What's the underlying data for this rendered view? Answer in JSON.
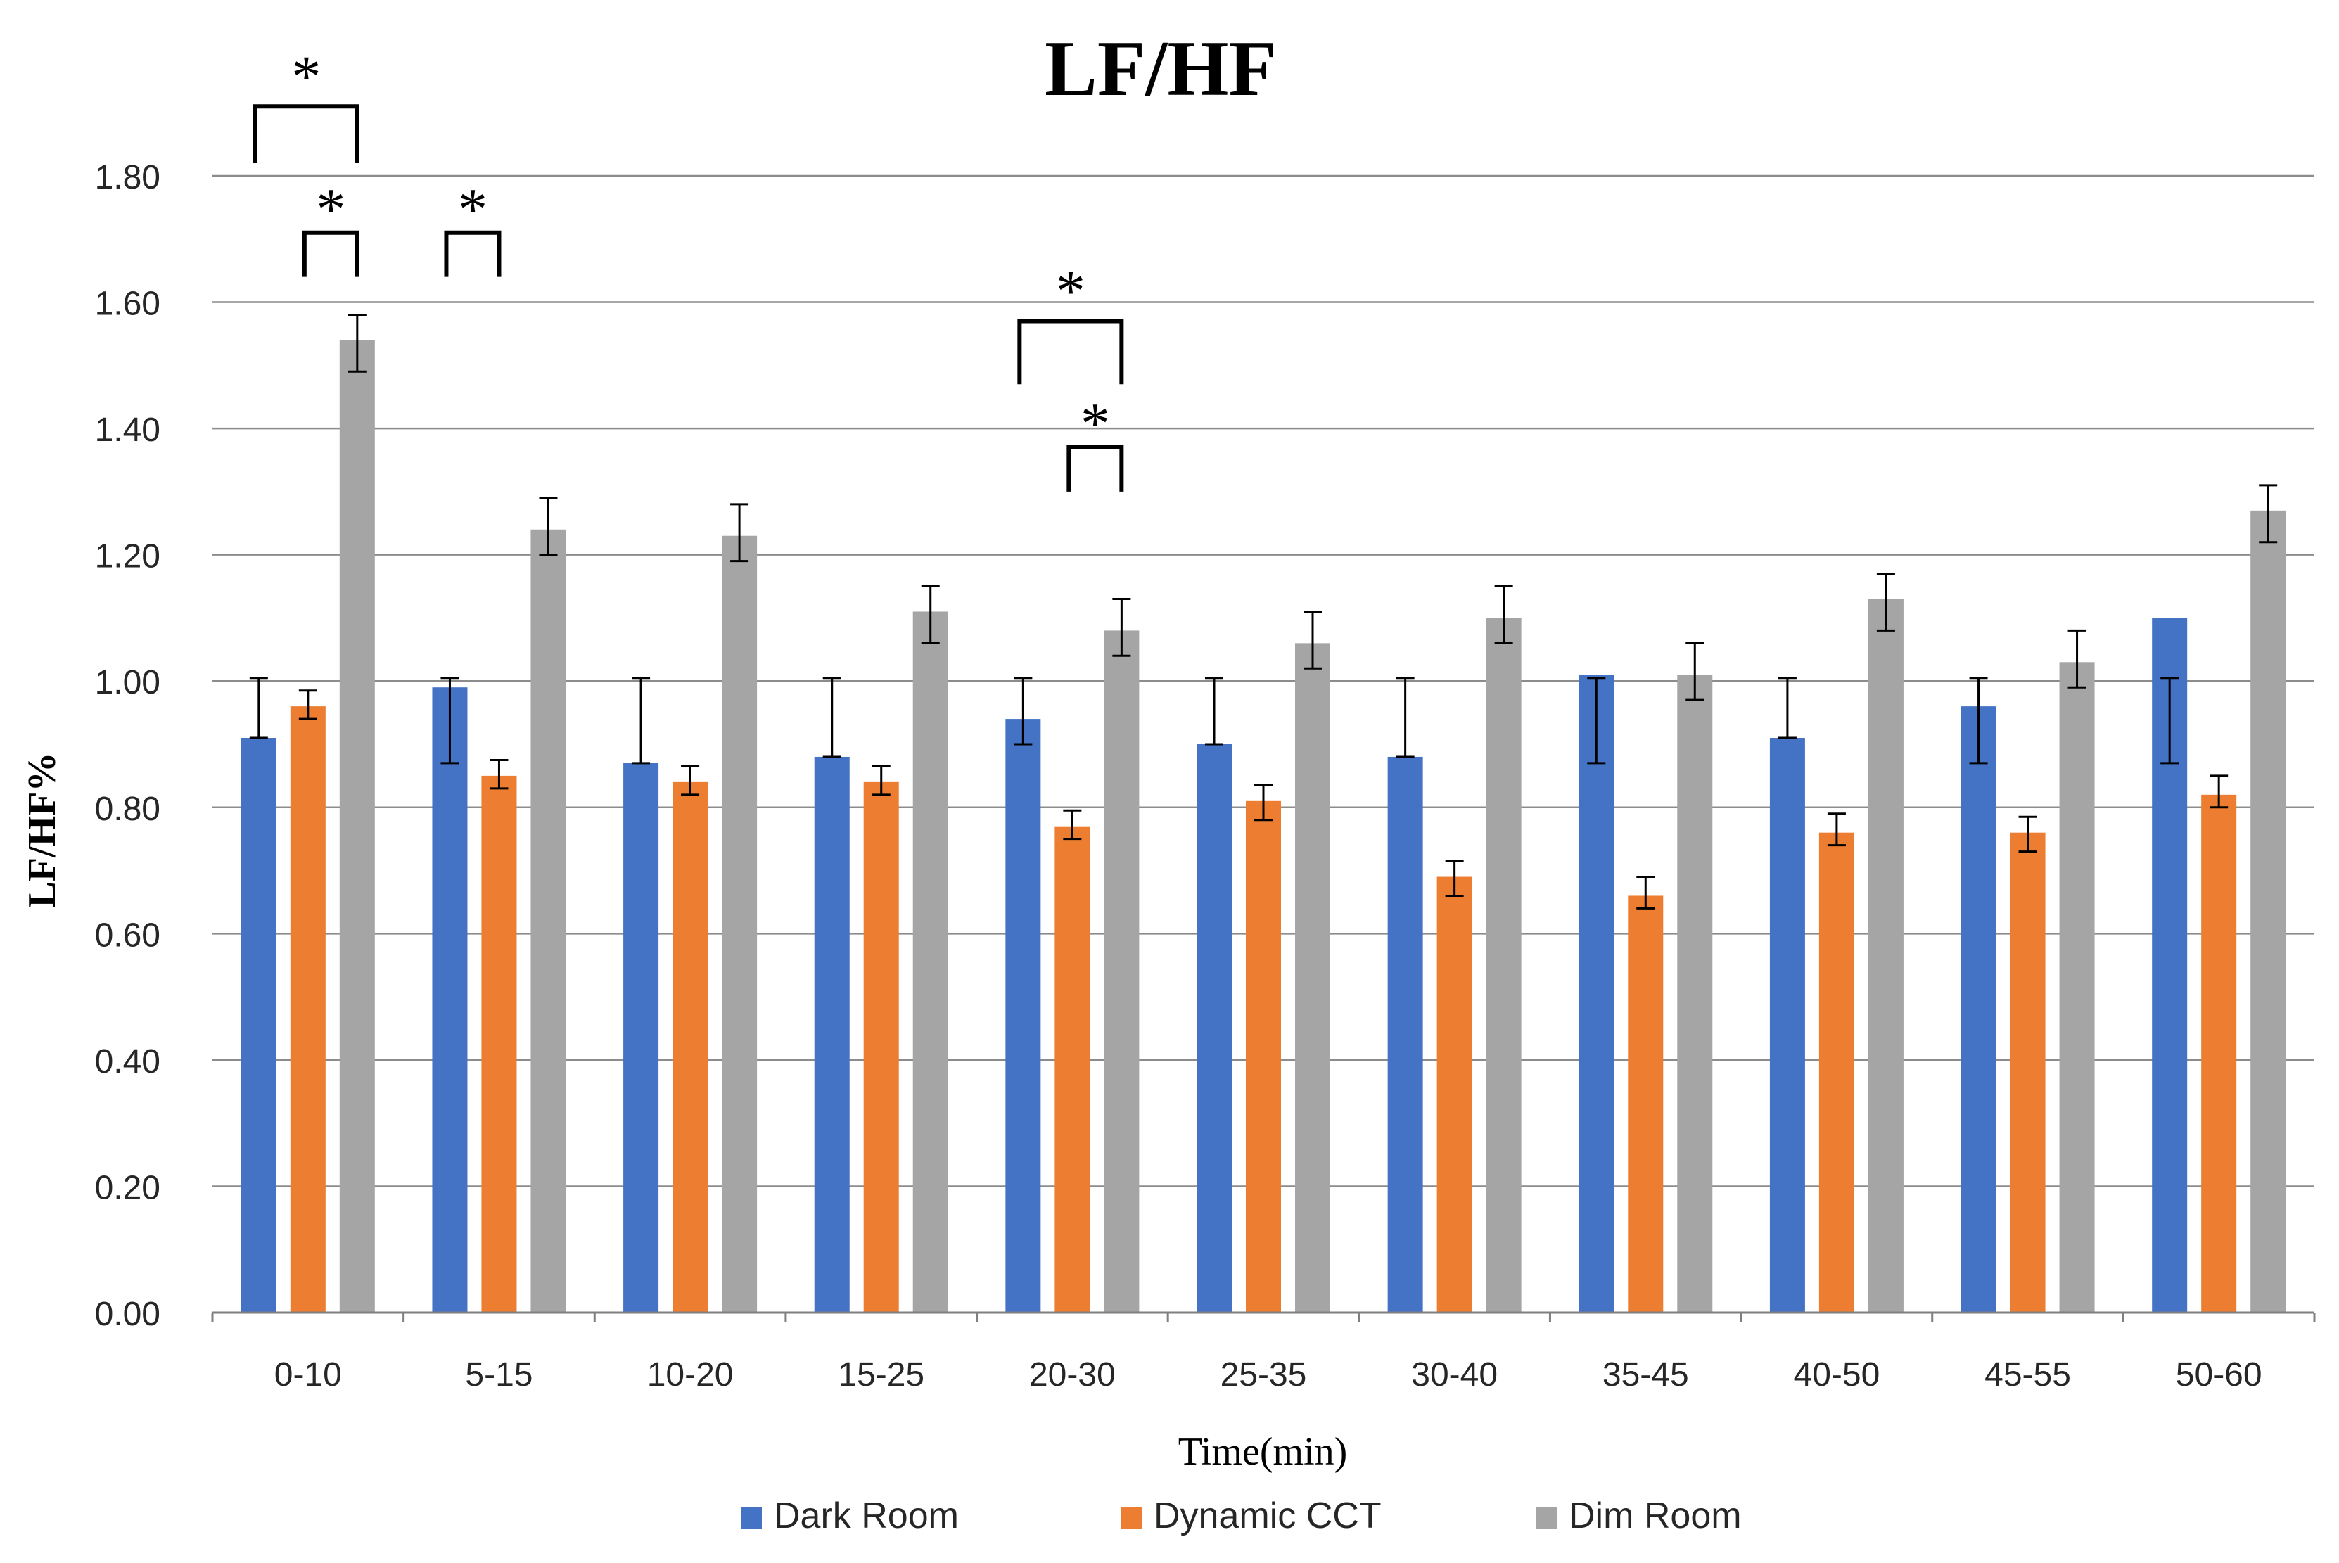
{
  "chart_data": {
    "type": "bar",
    "title": "LF/HF",
    "xlabel": "Time(min)",
    "ylabel": "LF/HF%",
    "ylim": [
      0,
      1.8
    ],
    "yticks": [
      "0.00",
      "0.20",
      "0.40",
      "0.60",
      "0.80",
      "1.00",
      "1.20",
      "1.40",
      "1.60",
      "1.80"
    ],
    "ytick_values": [
      0,
      0.2,
      0.4,
      0.6,
      0.8,
      1.0,
      1.2,
      1.4,
      1.6,
      1.8
    ],
    "grid": true,
    "legend_position": "bottom",
    "categories": [
      "0-10",
      "5-15",
      "10-20",
      "15-25",
      "20-30",
      "25-35",
      "30-40",
      "35-45",
      "40-50",
      "45-55",
      "50-60"
    ],
    "series": [
      {
        "name": "Dark Room",
        "color": "#4472C4",
        "values": [
          0.91,
          0.99,
          0.87,
          0.88,
          0.94,
          0.9,
          0.88,
          1.01,
          0.91,
          0.96,
          1.1
        ],
        "err_low": [
          0.91,
          0.87,
          0.87,
          0.88,
          0.9,
          0.9,
          0.88,
          0.87,
          0.91,
          0.87,
          0.87
        ],
        "err_high": [
          1.005,
          1.005,
          1.005,
          1.005,
          1.005,
          1.005,
          1.005,
          1.005,
          1.005,
          1.005,
          1.005
        ]
      },
      {
        "name": "Dynamic CCT",
        "color": "#ED7D31",
        "values": [
          0.96,
          0.85,
          0.84,
          0.84,
          0.77,
          0.81,
          0.69,
          0.66,
          0.76,
          0.76,
          0.82
        ],
        "err_low": [
          0.94,
          0.83,
          0.82,
          0.82,
          0.75,
          0.78,
          0.66,
          0.64,
          0.74,
          0.73,
          0.8
        ],
        "err_high": [
          0.985,
          0.875,
          0.865,
          0.865,
          0.795,
          0.835,
          0.715,
          0.69,
          0.79,
          0.785,
          0.85
        ]
      },
      {
        "name": "Dim Room",
        "color": "#A5A5A5",
        "values": [
          1.54,
          1.24,
          1.23,
          1.11,
          1.08,
          1.06,
          1.1,
          1.01,
          1.13,
          1.03,
          1.27
        ],
        "err_low": [
          1.49,
          1.2,
          1.19,
          1.06,
          1.04,
          1.02,
          1.06,
          0.97,
          1.08,
          0.99,
          1.22
        ],
        "err_high": [
          1.58,
          1.29,
          1.28,
          1.15,
          1.13,
          1.11,
          1.15,
          1.06,
          1.17,
          1.08,
          1.31
        ]
      }
    ],
    "annotations": {
      "symbol": "*",
      "brackets": [
        {
          "category": "0-10",
          "from_series": 0,
          "to_series": 2,
          "base_value": 1.82,
          "top_value": 1.91,
          "label_value": 1.96
        },
        {
          "category": "0-10",
          "from_series": 1,
          "to_series": 2,
          "base_value": 1.64,
          "top_value": 1.71,
          "label_value": 1.75
        },
        {
          "category": "5-15",
          "from_series": 0,
          "to_series": 1,
          "base_value": 1.64,
          "top_value": 1.71,
          "label_value": 1.75
        },
        {
          "category": "20-30",
          "from_series": 0,
          "to_series": 2,
          "base_value": 1.47,
          "top_value": 1.57,
          "label_value": 1.62
        },
        {
          "category": "20-30",
          "from_series": 1,
          "to_series": 2,
          "base_value": 1.3,
          "top_value": 1.37,
          "label_value": 1.41
        }
      ]
    }
  }
}
